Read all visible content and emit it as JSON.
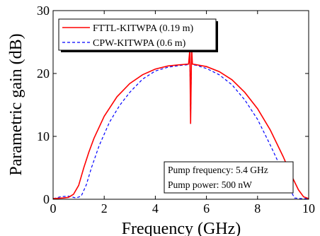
{
  "chart_data": {
    "type": "line",
    "title": "",
    "xlabel": "Frequency (GHz)",
    "ylabel": "Parametric gain (dB)",
    "xlim": [
      0,
      10
    ],
    "ylim": [
      0,
      30
    ],
    "x_ticks": [
      0,
      2,
      4,
      6,
      8,
      10
    ],
    "y_ticks": [
      0,
      10,
      20,
      30
    ],
    "grid": false,
    "legend_position": "top-left",
    "series": [
      {
        "name": "FTTL-KITWPA (0.19 m)",
        "color": "#ff0000",
        "style": "solid",
        "points": [
          [
            0.0,
            0.1
          ],
          [
            0.4,
            0.2
          ],
          [
            0.6,
            0.3
          ],
          [
            0.8,
            0.8
          ],
          [
            1.0,
            2.2
          ],
          [
            1.2,
            5.0
          ],
          [
            1.4,
            7.5
          ],
          [
            1.6,
            9.7
          ],
          [
            2.0,
            13.2
          ],
          [
            2.5,
            16.3
          ],
          [
            3.0,
            18.4
          ],
          [
            3.5,
            19.8
          ],
          [
            4.0,
            20.7
          ],
          [
            4.5,
            21.2
          ],
          [
            5.0,
            21.4
          ],
          [
            5.3,
            21.5
          ],
          [
            5.35,
            23.8
          ],
          [
            5.38,
            12.0
          ],
          [
            5.42,
            24.2
          ],
          [
            5.45,
            21.5
          ],
          [
            5.6,
            21.4
          ],
          [
            6.0,
            21.1
          ],
          [
            6.5,
            20.3
          ],
          [
            7.0,
            19.0
          ],
          [
            7.5,
            17.0
          ],
          [
            8.0,
            14.4
          ],
          [
            8.5,
            11.0
          ],
          [
            9.0,
            6.8
          ],
          [
            9.3,
            4.0
          ],
          [
            9.6,
            1.5
          ],
          [
            9.8,
            0.4
          ],
          [
            10.0,
            0.1
          ]
        ]
      },
      {
        "name": "CPW-KITWPA (0.6 m)",
        "color": "#0000ff",
        "style": "dashed",
        "points": [
          [
            0.0,
            0.1
          ],
          [
            0.3,
            0.4
          ],
          [
            0.6,
            0.5
          ],
          [
            0.9,
            0.2
          ],
          [
            1.1,
            0.5
          ],
          [
            1.3,
            2.3
          ],
          [
            1.5,
            5.0
          ],
          [
            1.8,
            8.5
          ],
          [
            2.2,
            12.2
          ],
          [
            2.6,
            14.9
          ],
          [
            3.0,
            17.0
          ],
          [
            3.5,
            19.1
          ],
          [
            4.0,
            20.4
          ],
          [
            4.5,
            21.0
          ],
          [
            5.0,
            21.3
          ],
          [
            5.3,
            21.4
          ],
          [
            5.35,
            23.5
          ],
          [
            5.38,
            12.0
          ],
          [
            5.42,
            24.0
          ],
          [
            5.45,
            21.4
          ],
          [
            5.6,
            21.3
          ],
          [
            6.0,
            20.8
          ],
          [
            6.5,
            19.8
          ],
          [
            7.0,
            18.2
          ],
          [
            7.5,
            15.8
          ],
          [
            8.0,
            12.7
          ],
          [
            8.5,
            8.6
          ],
          [
            8.8,
            6.0
          ],
          [
            9.1,
            3.0
          ],
          [
            9.3,
            1.3
          ],
          [
            9.45,
            0.2
          ],
          [
            9.7,
            0.1
          ],
          [
            10.0,
            0.1
          ]
        ]
      }
    ],
    "annotation_lines": [
      "Pump frequency: 5.4 GHz",
      "Pump power: 500 nW"
    ]
  }
}
